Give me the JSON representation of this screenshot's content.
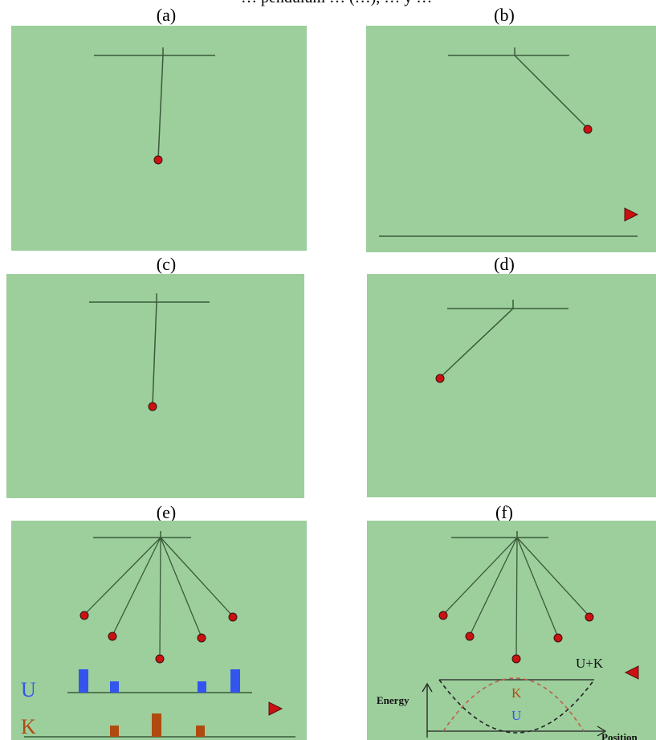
{
  "header_fragment": "… pendulum … (…), … y …",
  "panels": {
    "a": {
      "label": "(a)"
    },
    "b": {
      "label": "(b)"
    },
    "c": {
      "label": "(c)"
    },
    "d": {
      "label": "(d)"
    },
    "e": {
      "label": "(e)",
      "energy_letters": {
        "potential": "U",
        "kinetic": "K"
      }
    },
    "f": {
      "label": "(f)",
      "graph": {
        "ylabel": "Energy",
        "xlabel": "Position",
        "total_label": "U+K",
        "kinetic_label": "K",
        "potential_label": "U"
      }
    }
  },
  "colors": {
    "background": "#9ccf9c",
    "line": "#3a5a3a",
    "bob": "#cc1111",
    "potential_bar": "#3355ee",
    "kinetic_bar": "#b04a10",
    "kinetic_curve": "#c0604a",
    "arrow": "#cc1111"
  },
  "chart_data": {
    "type": "line",
    "xlabel": "Position",
    "ylabel": "Energy",
    "series": [
      {
        "name": "U+K",
        "shape": "constant"
      },
      {
        "name": "K",
        "shape": "inverted parabola"
      },
      {
        "name": "U",
        "shape": "parabola"
      }
    ],
    "bars_e": {
      "U": [
        3,
        1.5,
        0,
        1.5,
        3
      ],
      "K": [
        0,
        1.5,
        3,
        1.5,
        0
      ]
    }
  },
  "play_arrow_icon": "triangle-play-icon"
}
